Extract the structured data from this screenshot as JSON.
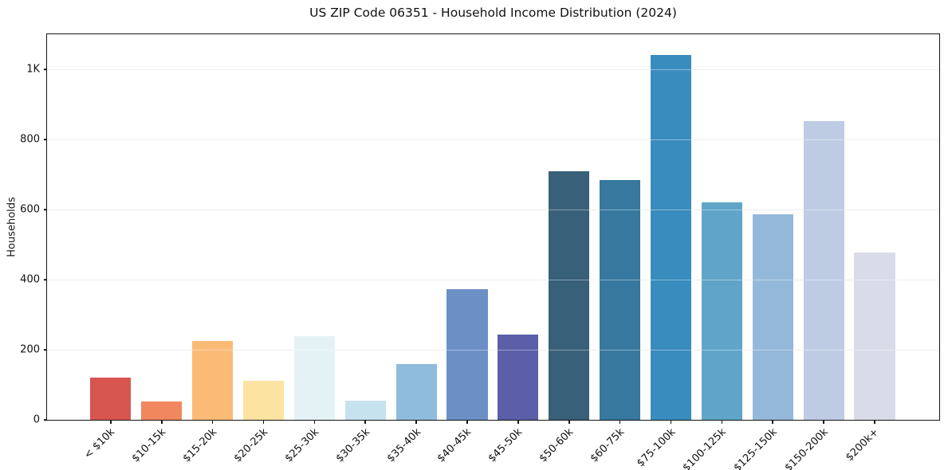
{
  "figure": {
    "title": "US ZIP Code 06351 - Household Income Distribution (2024)",
    "ylabel": "Households"
  },
  "chart_data": {
    "type": "bar",
    "title": "US ZIP Code 06351 - Household Income Distribution (2024)",
    "xlabel": "",
    "ylabel": "Households",
    "categories": [
      "< $10k",
      "$10-15k",
      "$15-20k",
      "$20-25k",
      "$25-30k",
      "$30-35k",
      "$35-40k",
      "$40-45k",
      "$45-50k",
      "$50-60k",
      "$60-75k",
      "$75-100k",
      "$100-125k",
      "$125-150k",
      "$150-200k",
      "$200k+"
    ],
    "values": [
      120,
      52,
      225,
      112,
      239,
      54,
      160,
      373,
      244,
      708,
      683,
      1041,
      620,
      586,
      852,
      478
    ],
    "bar_colors": [
      "#d6564f",
      "#f0875f",
      "#fbba76",
      "#fde3a2",
      "#e5f2f5",
      "#c6e2ef",
      "#8fbcdc",
      "#6c90c5",
      "#5a5fa8",
      "#386078",
      "#37789f",
      "#398dbe",
      "#60a5c9",
      "#94b8d9",
      "#bdcce3",
      "#dadbe8"
    ],
    "ylim": [
      0,
      1100
    ],
    "yticks": [
      {
        "value": 0,
        "label": "0"
      },
      {
        "value": 200,
        "label": "200"
      },
      {
        "value": 400,
        "label": "400"
      },
      {
        "value": 600,
        "label": "600"
      },
      {
        "value": 800,
        "label": "800"
      },
      {
        "value": 1000,
        "label": "1K"
      }
    ],
    "x_tick_label_rotation": 45,
    "grid": "horizontal",
    "legend": "none",
    "layout": {
      "background": "#ffffff",
      "spine_color": "#141414",
      "grid_color": "#e5e5e5",
      "text_color": "#111111",
      "bar_width_fraction": 0.8
    }
  }
}
